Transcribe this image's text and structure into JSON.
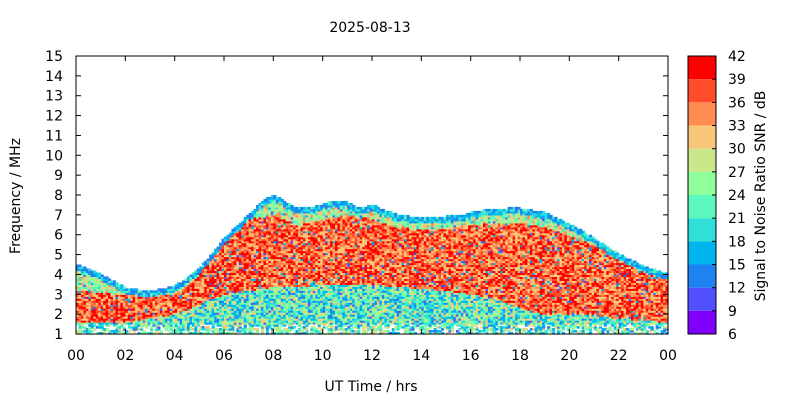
{
  "chart_data": {
    "type": "heatmap",
    "title": "2025-08-13",
    "xlabel": "UT Time / hrs",
    "ylabel": "Frequency / MHz",
    "colorbar_label": "Signal to Noise Ratio SNR / dB",
    "xlim": [
      0,
      24
    ],
    "ylim": [
      1,
      15
    ],
    "x_ticks": [
      "00",
      "02",
      "04",
      "06",
      "08",
      "10",
      "12",
      "14",
      "16",
      "18",
      "20",
      "22",
      "00"
    ],
    "y_ticks": [
      "1",
      "2",
      "3",
      "4",
      "5",
      "6",
      "7",
      "8",
      "9",
      "10",
      "11",
      "12",
      "13",
      "14",
      "15"
    ],
    "colorbar_range": [
      6,
      42
    ],
    "colorbar_ticks": [
      "6",
      "9",
      "12",
      "15",
      "18",
      "21",
      "24",
      "27",
      "30",
      "33",
      "36",
      "39",
      "42"
    ],
    "colorbar_colors": [
      "#7f00ff",
      "#5050ff",
      "#1e82f0",
      "#00b4ee",
      "#2ee0d8",
      "#5cf8c0",
      "#90ff9a",
      "#c8e88a",
      "#f8c87a",
      "#ff8c50",
      "#ff4c2a",
      "#ff0000"
    ],
    "upper_boundary_mhz": {
      "hours": [
        0,
        1,
        2,
        3,
        4,
        4.5,
        5,
        5.5,
        6,
        6.5,
        7,
        7.5,
        8,
        8.5,
        9,
        9.5,
        10,
        10.5,
        11,
        11.5,
        12,
        12.5,
        13,
        13.5,
        14,
        14.5,
        15,
        15.5,
        16,
        16.5,
        17,
        17.5,
        18,
        18.5,
        19,
        19.5,
        20,
        20.5,
        21,
        21.5,
        22,
        22.5,
        23,
        23.5,
        24
      ],
      "freq": [
        4.5,
        4.0,
        3.3,
        3.1,
        3.4,
        3.8,
        4.3,
        5.0,
        5.8,
        6.4,
        7.0,
        7.6,
        8.0,
        7.6,
        7.3,
        7.3,
        7.5,
        7.7,
        7.6,
        7.3,
        7.5,
        7.2,
        7.0,
        6.9,
        6.8,
        6.8,
        6.9,
        6.9,
        7.1,
        7.2,
        7.2,
        7.3,
        7.3,
        7.2,
        7.1,
        6.8,
        6.5,
        6.2,
        5.8,
        5.4,
        5.0,
        4.7,
        4.4,
        4.2,
        4.0
      ]
    },
    "core_region_mhz": {
      "hours": [
        0,
        2,
        4,
        5,
        6,
        7,
        8,
        9,
        10,
        11,
        12,
        13,
        14,
        15,
        16,
        17,
        18,
        19,
        20,
        21,
        22,
        23,
        24
      ],
      "low": [
        1.6,
        1.6,
        2.0,
        2.5,
        3.0,
        3.2,
        3.4,
        3.4,
        3.5,
        3.5,
        3.5,
        3.4,
        3.3,
        3.2,
        3.0,
        2.8,
        2.3,
        2.0,
        2.0,
        2.0,
        1.8,
        1.7,
        1.6
      ],
      "high": [
        3.2,
        3.0,
        3.0,
        4.0,
        6.2,
        6.8,
        7.0,
        6.5,
        6.8,
        7.0,
        6.8,
        6.4,
        6.3,
        6.3,
        6.5,
        6.6,
        6.6,
        6.4,
        6.0,
        5.5,
        4.8,
        4.2,
        3.8
      ]
    },
    "peak_snr_db": 42,
    "grid": false
  }
}
